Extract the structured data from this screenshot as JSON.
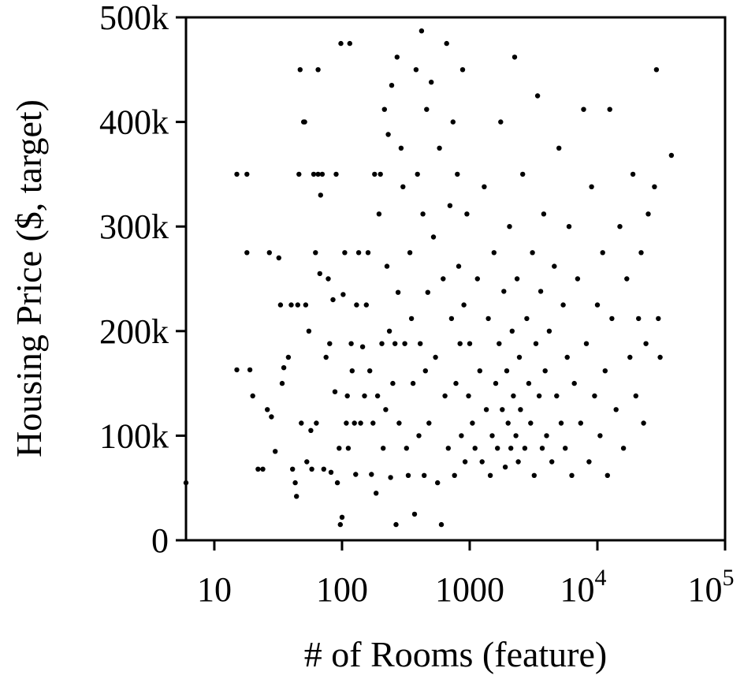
{
  "chart_data": {
    "type": "scatter",
    "xlabel": "# of Rooms (feature)",
    "ylabel": "Housing Price ($, target)",
    "x_scale": "log",
    "xlim": [
      6,
      100000
    ],
    "ylim": [
      0,
      500000
    ],
    "x_ticks": [
      {
        "value": 10,
        "label": "10"
      },
      {
        "value": 100,
        "label": "100"
      },
      {
        "value": 1000,
        "label": "1000"
      },
      {
        "value": 10000,
        "label": "10",
        "exponent": "4"
      },
      {
        "value": 100000,
        "label": "10",
        "exponent": "5"
      }
    ],
    "y_ticks": [
      {
        "value": 0,
        "label": "0"
      },
      {
        "value": 100000,
        "label": "100k"
      },
      {
        "value": 200000,
        "label": "200k"
      },
      {
        "value": 300000,
        "label": "300k"
      },
      {
        "value": 400000,
        "label": "400k"
      },
      {
        "value": 500000,
        "label": "500k"
      }
    ],
    "grid": false,
    "legend": "none",
    "marker_color": "#000000",
    "series": [
      {
        "points": [
          [
            6,
            55000
          ],
          [
            15,
            163000
          ],
          [
            15,
            350000
          ],
          [
            18,
            350000
          ],
          [
            18,
            275000
          ],
          [
            19,
            163000
          ],
          [
            20,
            138000
          ],
          [
            22,
            68000
          ],
          [
            24,
            68000
          ],
          [
            26,
            125000
          ],
          [
            27,
            275000
          ],
          [
            28,
            118000
          ],
          [
            30,
            85000
          ],
          [
            32,
            270000
          ],
          [
            33,
            225000
          ],
          [
            34,
            150000
          ],
          [
            35,
            165000
          ],
          [
            38,
            175000
          ],
          [
            40,
            225000
          ],
          [
            41,
            68000
          ],
          [
            43,
            55000
          ],
          [
            44,
            42000
          ],
          [
            45,
            225000
          ],
          [
            46,
            350000
          ],
          [
            47,
            450000
          ],
          [
            48,
            112000
          ],
          [
            50,
            400000
          ],
          [
            51,
            400000
          ],
          [
            52,
            225000
          ],
          [
            53,
            75000
          ],
          [
            55,
            200000
          ],
          [
            57,
            105000
          ],
          [
            58,
            68000
          ],
          [
            60,
            350000
          ],
          [
            62,
            275000
          ],
          [
            63,
            112000
          ],
          [
            65,
            450000
          ],
          [
            65,
            350000
          ],
          [
            67,
            255000
          ],
          [
            68,
            330000
          ],
          [
            70,
            350000
          ],
          [
            72,
            68000
          ],
          [
            75,
            175000
          ],
          [
            78,
            250000
          ],
          [
            80,
            188000
          ],
          [
            82,
            65000
          ],
          [
            85,
            230000
          ],
          [
            88,
            142000
          ],
          [
            90,
            350000
          ],
          [
            92,
            55000
          ],
          [
            95,
            88000
          ],
          [
            97,
            15000
          ],
          [
            98,
            475000
          ],
          [
            100,
            22000
          ],
          [
            102,
            235000
          ],
          [
            105,
            275000
          ],
          [
            108,
            112000
          ],
          [
            110,
            138000
          ],
          [
            112,
            88000
          ],
          [
            115,
            475000
          ],
          [
            118,
            188000
          ],
          [
            120,
            162000
          ],
          [
            125,
            112000
          ],
          [
            128,
            63000
          ],
          [
            130,
            225000
          ],
          [
            135,
            275000
          ],
          [
            140,
            112000
          ],
          [
            145,
            185000
          ],
          [
            150,
            138000
          ],
          [
            155,
            225000
          ],
          [
            160,
            275000
          ],
          [
            165,
            162000
          ],
          [
            170,
            63000
          ],
          [
            175,
            112000
          ],
          [
            180,
            350000
          ],
          [
            185,
            45000
          ],
          [
            190,
            138000
          ],
          [
            195,
            312000
          ],
          [
            200,
            350000
          ],
          [
            205,
            188000
          ],
          [
            210,
            88000
          ],
          [
            215,
            412000
          ],
          [
            220,
            125000
          ],
          [
            225,
            262000
          ],
          [
            230,
            388000
          ],
          [
            235,
            200000
          ],
          [
            240,
            60000
          ],
          [
            245,
            435000
          ],
          [
            250,
            150000
          ],
          [
            260,
            188000
          ],
          [
            265,
            15000
          ],
          [
            270,
            462000
          ],
          [
            275,
            237000
          ],
          [
            280,
            112000
          ],
          [
            290,
            375000
          ],
          [
            300,
            338000
          ],
          [
            310,
            188000
          ],
          [
            320,
            88000
          ],
          [
            330,
            62000
          ],
          [
            340,
            275000
          ],
          [
            350,
            212000
          ],
          [
            360,
            150000
          ],
          [
            370,
            25000
          ],
          [
            380,
            450000
          ],
          [
            390,
            350000
          ],
          [
            400,
            100000
          ],
          [
            410,
            188000
          ],
          [
            420,
            487000
          ],
          [
            430,
            312000
          ],
          [
            440,
            62000
          ],
          [
            450,
            162000
          ],
          [
            460,
            412000
          ],
          [
            470,
            237000
          ],
          [
            480,
            112000
          ],
          [
            500,
            438000
          ],
          [
            520,
            290000
          ],
          [
            540,
            175000
          ],
          [
            560,
            55000
          ],
          [
            580,
            375000
          ],
          [
            600,
            15000
          ],
          [
            620,
            250000
          ],
          [
            640,
            138000
          ],
          [
            660,
            475000
          ],
          [
            680,
            88000
          ],
          [
            700,
            320000
          ],
          [
            720,
            212000
          ],
          [
            740,
            400000
          ],
          [
            760,
            62000
          ],
          [
            780,
            150000
          ],
          [
            800,
            350000
          ],
          [
            820,
            262000
          ],
          [
            840,
            188000
          ],
          [
            860,
            100000
          ],
          [
            880,
            450000
          ],
          [
            900,
            225000
          ],
          [
            920,
            75000
          ],
          [
            950,
            312000
          ],
          [
            980,
            138000
          ],
          [
            1000,
            188000
          ],
          [
            1050,
            112000
          ],
          [
            1100,
            88000
          ],
          [
            1150,
            250000
          ],
          [
            1200,
            162000
          ],
          [
            1250,
            75000
          ],
          [
            1300,
            338000
          ],
          [
            1350,
            125000
          ],
          [
            1400,
            212000
          ],
          [
            1450,
            62000
          ],
          [
            1500,
            100000
          ],
          [
            1550,
            275000
          ],
          [
            1600,
            150000
          ],
          [
            1650,
            88000
          ],
          [
            1700,
            188000
          ],
          [
            1750,
            400000
          ],
          [
            1800,
            125000
          ],
          [
            1850,
            238000
          ],
          [
            1900,
            70000
          ],
          [
            1950,
            162000
          ],
          [
            2000,
            112000
          ],
          [
            2050,
            300000
          ],
          [
            2100,
            88000
          ],
          [
            2150,
            200000
          ],
          [
            2200,
            138000
          ],
          [
            2250,
            462000
          ],
          [
            2300,
            100000
          ],
          [
            2350,
            250000
          ],
          [
            2400,
            75000
          ],
          [
            2450,
            175000
          ],
          [
            2500,
            125000
          ],
          [
            2600,
            350000
          ],
          [
            2700,
            88000
          ],
          [
            2800,
            212000
          ],
          [
            2900,
            150000
          ],
          [
            3000,
            112000
          ],
          [
            3100,
            275000
          ],
          [
            3200,
            62000
          ],
          [
            3300,
            188000
          ],
          [
            3400,
            425000
          ],
          [
            3500,
            138000
          ],
          [
            3600,
            238000
          ],
          [
            3700,
            88000
          ],
          [
            3800,
            312000
          ],
          [
            3900,
            162000
          ],
          [
            4000,
            100000
          ],
          [
            4200,
            200000
          ],
          [
            4400,
            75000
          ],
          [
            4600,
            262000
          ],
          [
            4800,
            138000
          ],
          [
            5000,
            375000
          ],
          [
            5200,
            112000
          ],
          [
            5400,
            225000
          ],
          [
            5600,
            88000
          ],
          [
            5800,
            175000
          ],
          [
            6000,
            300000
          ],
          [
            6300,
            62000
          ],
          [
            6600,
            150000
          ],
          [
            7000,
            250000
          ],
          [
            7400,
            112000
          ],
          [
            7800,
            412000
          ],
          [
            8200,
            188000
          ],
          [
            8600,
            75000
          ],
          [
            9000,
            338000
          ],
          [
            9500,
            138000
          ],
          [
            10000,
            225000
          ],
          [
            10500,
            100000
          ],
          [
            11000,
            275000
          ],
          [
            11500,
            162000
          ],
          [
            12000,
            62000
          ],
          [
            12500,
            412000
          ],
          [
            13000,
            212000
          ],
          [
            14000,
            125000
          ],
          [
            15000,
            300000
          ],
          [
            16000,
            88000
          ],
          [
            17000,
            250000
          ],
          [
            18000,
            175000
          ],
          [
            19000,
            350000
          ],
          [
            20000,
            138000
          ],
          [
            21000,
            212000
          ],
          [
            22000,
            275000
          ],
          [
            23000,
            112000
          ],
          [
            24000,
            188000
          ],
          [
            25000,
            312000
          ],
          [
            28000,
            338000
          ],
          [
            29000,
            450000
          ],
          [
            30000,
            212000
          ],
          [
            31000,
            175000
          ],
          [
            38000,
            368000
          ]
        ]
      }
    ]
  }
}
